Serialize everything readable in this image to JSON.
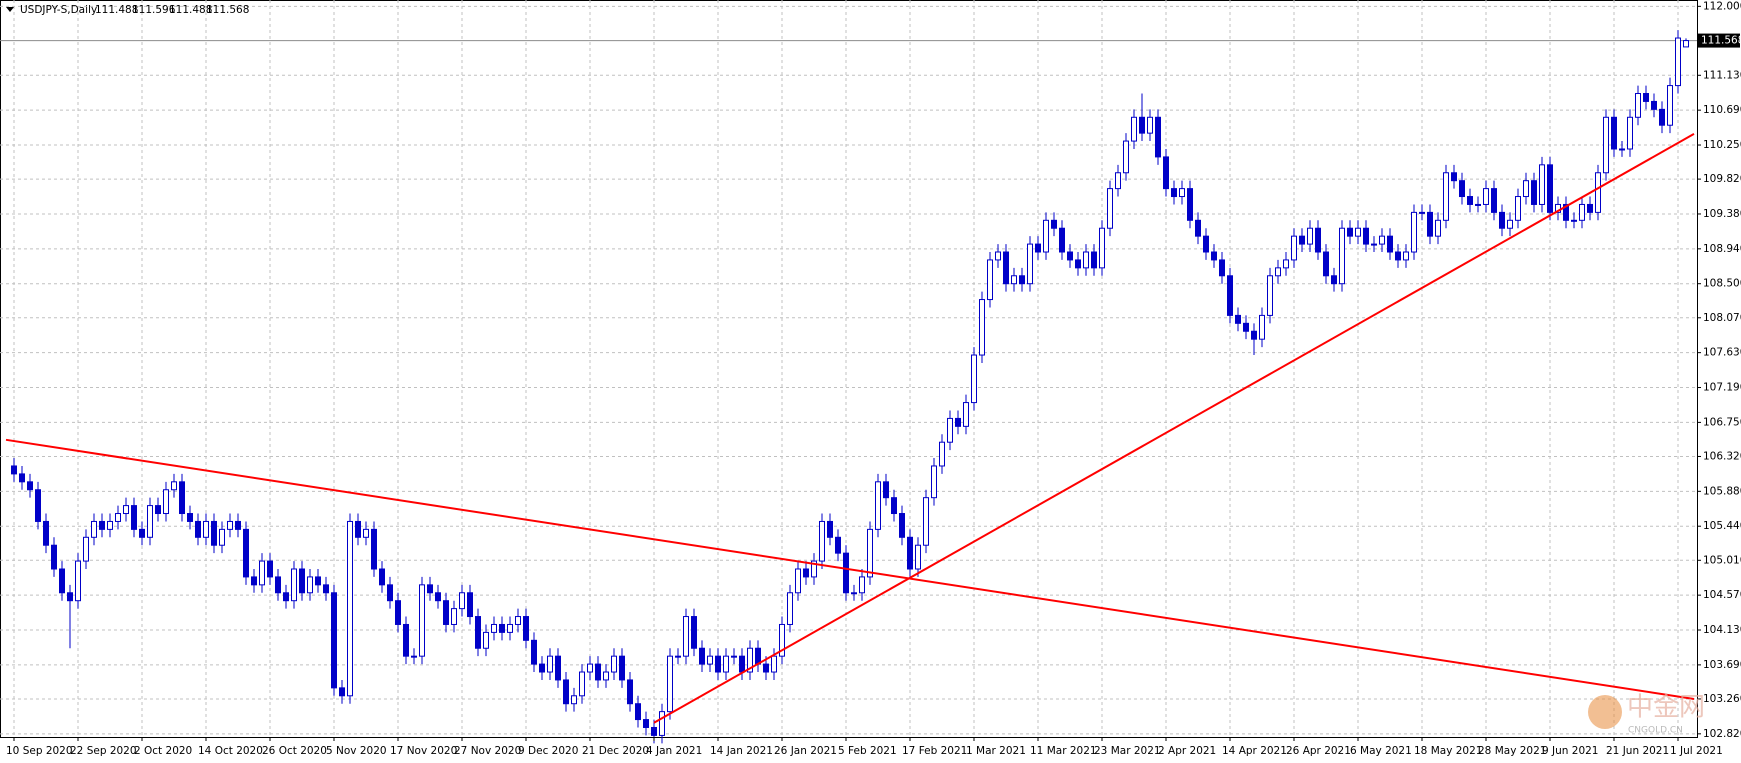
{
  "chart_data": {
    "type": "candlestick",
    "title": "USDJPY-S,Daily",
    "color": "#0000c8",
    "grid": true,
    "categories": [
      "10 Sep 2020",
      null,
      null,
      null,
      null,
      null,
      null,
      null,
      "22 Sep 2020",
      null,
      null,
      null,
      null,
      null,
      null,
      null,
      "2 Oct 2020",
      null,
      null,
      null,
      null,
      null,
      null,
      null,
      "14 Oct 2020",
      null,
      null,
      null,
      null,
      null,
      null,
      null,
      "26 Oct 2020",
      null,
      null,
      null,
      null,
      null,
      null,
      null,
      "5 Nov 2020",
      null,
      null,
      null,
      null,
      null,
      null,
      null,
      "17 Nov 2020",
      null,
      null,
      null,
      null,
      null,
      null,
      null,
      "27 Nov 2020",
      null,
      null,
      null,
      null,
      null,
      null,
      null,
      "9 Dec 2020",
      null,
      null,
      null,
      null,
      null,
      null,
      null,
      "21 Dec 2020",
      null,
      null,
      null,
      null,
      null,
      null,
      null,
      "4 Jan 2021",
      null,
      null,
      null,
      null,
      null,
      null,
      null,
      "14 Jan 2021",
      null,
      null,
      null,
      null,
      null,
      null,
      null,
      "26 Jan 2021",
      null,
      null,
      null,
      null,
      null,
      null,
      null,
      "5 Feb 2021",
      null,
      null,
      null,
      null,
      null,
      null,
      null,
      "17 Feb 2021",
      null,
      null,
      null,
      null,
      null,
      null,
      null,
      "1 Mar 2021",
      null,
      null,
      null,
      null,
      null,
      null,
      null,
      "11 Mar 2021",
      null,
      null,
      null,
      null,
      null,
      null,
      null,
      "23 Mar 2021",
      null,
      null,
      null,
      null,
      null,
      null,
      null,
      "2 Apr 2021",
      null,
      null,
      null,
      null,
      null,
      null,
      null,
      "14 Apr 2021",
      null,
      null,
      null,
      null,
      null,
      null,
      null,
      "26 Apr 2021",
      null,
      null,
      null,
      null,
      null,
      null,
      null,
      "6 May 2021",
      null,
      null,
      null,
      null,
      null,
      null,
      null,
      "18 May 2021",
      null,
      null,
      null,
      null,
      null,
      null,
      null,
      "28 May 2021",
      null,
      null,
      null,
      null,
      null,
      null,
      null,
      "9 Jun 2021",
      null,
      null,
      null,
      null,
      null,
      null,
      null,
      "21 Jun 2021",
      null,
      null,
      null,
      null,
      null,
      null,
      null,
      "1 Jul 2021",
      null
    ],
    "open": [
      106.2,
      106.1,
      106.0,
      105.9,
      105.5,
      105.2,
      104.9,
      104.6,
      104.5,
      105.0,
      105.3,
      105.5,
      105.4,
      105.5,
      105.6,
      105.7,
      105.4,
      105.3,
      105.7,
      105.6,
      105.9,
      106.0,
      105.6,
      105.5,
      105.3,
      105.5,
      105.2,
      105.4,
      105.5,
      105.4,
      104.8,
      104.7,
      105.0,
      104.8,
      104.6,
      104.5,
      104.9,
      104.6,
      104.8,
      104.7,
      104.6,
      103.4,
      103.3,
      105.5,
      105.3,
      105.4,
      104.9,
      104.7,
      104.5,
      104.2,
      103.8,
      103.8,
      104.7,
      104.6,
      104.5,
      104.2,
      104.4,
      104.6,
      104.3,
      103.9,
      104.1,
      104.2,
      104.1,
      104.2,
      104.3,
      104.0,
      103.7,
      103.6,
      103.8,
      103.5,
      103.2,
      103.3,
      103.6,
      103.7,
      103.5,
      103.6,
      103.8,
      103.5,
      103.2,
      103.0,
      102.9,
      102.8,
      103.1,
      103.8,
      103.8,
      104.3,
      103.9,
      103.7,
      103.8,
      103.6,
      103.8,
      103.8,
      103.6,
      103.9,
      103.7,
      103.6,
      103.8,
      104.2,
      104.6,
      104.9,
      104.8,
      105.0,
      105.5,
      105.3,
      105.1,
      104.6,
      104.6,
      104.8,
      105.4,
      106.0,
      105.8,
      105.6,
      105.3,
      104.9,
      105.2,
      105.8,
      106.2,
      106.5,
      106.8,
      106.7,
      107.0,
      107.6,
      108.3,
      108.8,
      108.9,
      108.5,
      108.6,
      108.5,
      109.0,
      108.9,
      109.3,
      109.2,
      108.9,
      108.8,
      108.7,
      108.9,
      108.7,
      109.2,
      109.7,
      109.9,
      110.3,
      110.6,
      110.4,
      110.6,
      110.1,
      109.7,
      109.6,
      109.7,
      109.3,
      109.1,
      108.9,
      108.8,
      108.6,
      108.1,
      108.0,
      107.9,
      107.8,
      108.1,
      108.6,
      108.7,
      108.8,
      109.1,
      109.0,
      109.2,
      108.9,
      108.6,
      108.5,
      109.2,
      109.1,
      109.2,
      109.0,
      109.0,
      109.1,
      108.9,
      108.8,
      108.9,
      109.4,
      109.4,
      109.1,
      109.3,
      109.9,
      109.8,
      109.6,
      109.5,
      109.5,
      109.7,
      109.4,
      109.2,
      109.3,
      109.6,
      109.8,
      109.5,
      110.0,
      109.4,
      109.5,
      109.3,
      109.3,
      109.5,
      109.4,
      109.9,
      110.6,
      110.2,
      110.2,
      110.6,
      110.9,
      110.8,
      110.7,
      110.5,
      111.0,
      111.488
    ],
    "high": [
      106.3,
      106.2,
      106.1,
      106.0,
      105.6,
      105.3,
      105.0,
      104.7,
      105.1,
      105.4,
      105.6,
      105.6,
      105.6,
      105.7,
      105.8,
      105.8,
      105.5,
      105.8,
      105.8,
      106.0,
      106.1,
      106.1,
      105.7,
      105.6,
      105.6,
      105.6,
      105.5,
      105.6,
      105.6,
      105.5,
      104.9,
      105.1,
      105.1,
      104.9,
      104.7,
      105.0,
      105.0,
      104.9,
      104.9,
      104.8,
      104.7,
      103.5,
      105.6,
      105.6,
      105.5,
      105.5,
      105.0,
      104.8,
      104.6,
      104.3,
      103.9,
      104.8,
      104.8,
      104.7,
      104.6,
      104.5,
      104.7,
      104.7,
      104.4,
      104.2,
      104.3,
      104.3,
      104.3,
      104.4,
      104.4,
      104.1,
      103.8,
      103.9,
      103.9,
      103.6,
      103.4,
      103.7,
      103.8,
      103.8,
      103.7,
      103.9,
      103.9,
      103.6,
      103.3,
      103.1,
      103.0,
      103.2,
      103.9,
      103.9,
      104.4,
      104.4,
      104.0,
      103.9,
      103.9,
      103.9,
      103.9,
      103.9,
      104.0,
      104.0,
      103.8,
      103.9,
      104.3,
      104.7,
      105.0,
      105.0,
      105.1,
      105.6,
      105.6,
      105.4,
      105.2,
      104.7,
      104.9,
      105.5,
      106.1,
      106.1,
      105.9,
      105.7,
      105.4,
      105.3,
      105.9,
      106.3,
      106.6,
      106.9,
      106.9,
      107.1,
      107.7,
      108.4,
      108.9,
      109.0,
      109.0,
      108.7,
      108.7,
      109.1,
      109.1,
      109.4,
      109.4,
      109.3,
      109.0,
      108.9,
      109.0,
      109.0,
      109.3,
      109.8,
      110.0,
      110.4,
      110.7,
      110.9,
      110.7,
      110.7,
      110.2,
      109.8,
      109.8,
      109.8,
      109.4,
      109.2,
      109.0,
      108.9,
      108.7,
      108.2,
      108.1,
      108.0,
      108.2,
      108.7,
      108.8,
      108.9,
      109.2,
      109.2,
      109.3,
      109.3,
      109.0,
      108.7,
      109.3,
      109.3,
      109.3,
      109.3,
      109.1,
      109.2,
      109.2,
      109.0,
      109.0,
      109.5,
      109.5,
      109.5,
      109.4,
      110.0,
      110.0,
      109.9,
      109.7,
      109.6,
      109.8,
      109.8,
      109.5,
      109.4,
      109.7,
      109.9,
      109.9,
      110.1,
      110.1,
      109.6,
      109.6,
      109.4,
      109.6,
      109.6,
      110.0,
      110.7,
      110.7,
      110.3,
      110.7,
      111.0,
      111.0,
      110.9,
      110.8,
      111.1,
      111.7,
      111.596
    ],
    "low": [
      106.0,
      105.9,
      105.8,
      105.4,
      105.1,
      104.8,
      104.5,
      103.9,
      104.4,
      104.9,
      105.2,
      105.3,
      105.3,
      105.4,
      105.5,
      105.3,
      105.2,
      105.2,
      105.5,
      105.5,
      105.8,
      105.5,
      105.4,
      105.2,
      105.2,
      105.1,
      105.1,
      105.3,
      105.3,
      104.7,
      104.6,
      104.6,
      104.7,
      104.5,
      104.4,
      104.4,
      104.5,
      104.5,
      104.6,
      104.5,
      103.3,
      103.2,
      103.2,
      105.2,
      105.2,
      104.8,
      104.6,
      104.4,
      104.1,
      103.7,
      103.7,
      103.7,
      104.5,
      104.4,
      104.1,
      104.1,
      104.3,
      104.2,
      103.8,
      103.8,
      104.0,
      104.0,
      104.0,
      104.1,
      103.9,
      103.6,
      103.5,
      103.5,
      103.4,
      103.1,
      103.1,
      103.2,
      103.5,
      103.4,
      103.4,
      103.5,
      103.4,
      103.1,
      102.9,
      102.8,
      102.7,
      102.7,
      103.0,
      103.7,
      103.7,
      103.8,
      103.6,
      103.6,
      103.5,
      103.5,
      103.7,
      103.5,
      103.5,
      103.6,
      103.5,
      103.5,
      103.7,
      104.1,
      104.5,
      104.7,
      104.7,
      104.9,
      105.2,
      105.0,
      104.5,
      104.5,
      104.5,
      104.7,
      105.3,
      105.7,
      105.5,
      105.2,
      104.8,
      104.8,
      105.1,
      105.7,
      106.1,
      106.4,
      106.6,
      106.6,
      106.9,
      107.5,
      108.2,
      108.7,
      108.4,
      108.4,
      108.4,
      108.4,
      108.8,
      108.8,
      109.1,
      108.8,
      108.7,
      108.6,
      108.6,
      108.6,
      108.6,
      109.1,
      109.6,
      109.8,
      110.2,
      110.3,
      110.3,
      110.0,
      109.6,
      109.5,
      109.5,
      109.2,
      109.0,
      108.8,
      108.7,
      108.5,
      108.0,
      107.9,
      107.8,
      107.6,
      107.7,
      108.0,
      108.5,
      108.6,
      108.7,
      108.9,
      108.9,
      108.8,
      108.5,
      108.4,
      108.4,
      109.0,
      109.0,
      108.9,
      108.9,
      108.9,
      108.8,
      108.7,
      108.7,
      108.8,
      109.3,
      109.0,
      109.0,
      109.2,
      109.7,
      109.5,
      109.4,
      109.4,
      109.4,
      109.3,
      109.1,
      109.1,
      109.2,
      109.5,
      109.4,
      109.4,
      109.3,
      109.3,
      109.2,
      109.2,
      109.2,
      109.3,
      109.3,
      109.8,
      110.1,
      110.1,
      110.1,
      110.5,
      110.7,
      110.6,
      110.4,
      110.4,
      110.9,
      111.488
    ],
    "close": [
      106.1,
      106.0,
      105.9,
      105.5,
      105.2,
      104.9,
      104.6,
      104.5,
      105.0,
      105.3,
      105.5,
      105.4,
      105.5,
      105.6,
      105.7,
      105.4,
      105.3,
      105.7,
      105.6,
      105.9,
      106.0,
      105.6,
      105.5,
      105.3,
      105.5,
      105.2,
      105.4,
      105.5,
      105.4,
      104.8,
      104.7,
      105.0,
      104.8,
      104.6,
      104.5,
      104.9,
      104.6,
      104.8,
      104.7,
      104.6,
      103.4,
      103.3,
      105.5,
      105.3,
      105.4,
      104.9,
      104.7,
      104.5,
      104.2,
      103.8,
      103.8,
      104.7,
      104.6,
      104.5,
      104.2,
      104.4,
      104.6,
      104.3,
      103.9,
      104.1,
      104.2,
      104.1,
      104.2,
      104.3,
      104.0,
      103.7,
      103.6,
      103.8,
      103.5,
      103.2,
      103.3,
      103.6,
      103.7,
      103.5,
      103.6,
      103.8,
      103.5,
      103.2,
      103.0,
      102.9,
      102.8,
      103.1,
      103.8,
      103.8,
      104.3,
      103.9,
      103.7,
      103.8,
      103.6,
      103.8,
      103.8,
      103.6,
      103.9,
      103.7,
      103.6,
      103.8,
      104.2,
      104.6,
      104.9,
      104.8,
      105.0,
      105.5,
      105.3,
      105.1,
      104.6,
      104.6,
      104.8,
      105.4,
      106.0,
      105.8,
      105.6,
      105.3,
      104.9,
      105.2,
      105.8,
      106.2,
      106.5,
      106.8,
      106.7,
      107.0,
      107.6,
      108.3,
      108.8,
      108.9,
      108.5,
      108.6,
      108.5,
      109.0,
      108.9,
      109.3,
      109.2,
      108.9,
      108.8,
      108.7,
      108.9,
      108.7,
      109.2,
      109.7,
      109.9,
      110.3,
      110.6,
      110.4,
      110.6,
      110.1,
      109.7,
      109.6,
      109.7,
      109.3,
      109.1,
      108.9,
      108.8,
      108.6,
      108.1,
      108.0,
      107.9,
      107.8,
      108.1,
      108.6,
      108.7,
      108.8,
      109.1,
      109.0,
      109.2,
      108.9,
      108.6,
      108.5,
      109.2,
      109.1,
      109.2,
      109.0,
      109.0,
      109.1,
      108.9,
      108.8,
      108.9,
      109.4,
      109.4,
      109.1,
      109.3,
      109.9,
      109.8,
      109.6,
      109.5,
      109.5,
      109.7,
      109.4,
      109.2,
      109.3,
      109.6,
      109.8,
      109.5,
      110.0,
      109.4,
      109.5,
      109.3,
      109.3,
      109.5,
      109.4,
      109.9,
      110.6,
      110.2,
      110.2,
      110.6,
      110.9,
      110.8,
      110.7,
      110.5,
      111.0,
      111.6,
      111.568
    ],
    "ylim": [
      102.78,
      112.08
    ],
    "yticks": [
      {
        "value": 112,
        "label": "112.000"
      },
      {
        "value": 111.13,
        "label": "111.130"
      },
      {
        "value": 110.69,
        "label": "110.690"
      },
      {
        "value": 110.25,
        "label": "110.250"
      },
      {
        "value": 109.82,
        "label": "109.820"
      },
      {
        "value": 109.38,
        "label": "109.380"
      },
      {
        "value": 108.94,
        "label": "108.940"
      },
      {
        "value": 108.5,
        "label": "108.500"
      },
      {
        "value": 108.07,
        "label": "108.070"
      },
      {
        "value": 107.63,
        "label": "107.630"
      },
      {
        "value": 107.19,
        "label": "107.190"
      },
      {
        "value": 106.75,
        "label": "106.750"
      },
      {
        "value": 106.32,
        "label": "106.320"
      },
      {
        "value": 105.88,
        "label": "105.880"
      },
      {
        "value": 105.44,
        "label": "105.440"
      },
      {
        "value": 105.01,
        "label": "105.010"
      },
      {
        "value": 104.57,
        "label": "104.570"
      },
      {
        "value": 104.13,
        "label": "104.130"
      },
      {
        "value": 103.69,
        "label": "103.690"
      },
      {
        "value": 103.26,
        "label": "103.260"
      },
      {
        "value": 102.82,
        "label": "102.820"
      }
    ],
    "price_line": 111.568,
    "trendlines": [
      {
        "color": "#ff0000",
        "x": [
          -1,
          210
        ],
        "y": [
          106.53,
          103.26
        ]
      },
      {
        "color": "#ff0000",
        "x": [
          80,
          210
        ],
        "y": [
          102.96,
          110.39
        ]
      }
    ],
    "watermark": {
      "name": "中金网",
      "site": "CNGOLD.CN"
    }
  }
}
